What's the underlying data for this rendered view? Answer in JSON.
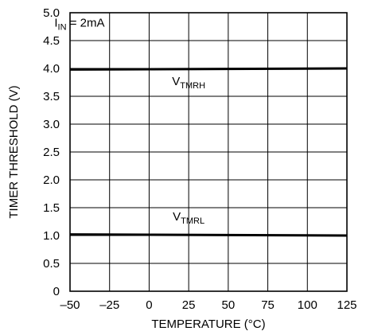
{
  "chart_data": {
    "type": "line",
    "xlabel": "TEMPERATURE (°C)",
    "ylabel": "TIMER THRESHOLD (V)",
    "xlim": [
      -50,
      125
    ],
    "ylim": [
      0,
      5.0
    ],
    "x_ticks": [
      -50,
      -25,
      0,
      25,
      50,
      75,
      100,
      125
    ],
    "x_tick_labels": [
      "–50",
      "–25",
      "0",
      "25",
      "50",
      "75",
      "100",
      "125"
    ],
    "y_ticks": [
      0,
      0.5,
      1.0,
      1.5,
      2.0,
      2.5,
      3.0,
      3.5,
      4.0,
      4.5,
      5.0
    ],
    "y_tick_labels": [
      "0",
      "0.5",
      "1.0",
      "1.5",
      "2.0",
      "2.5",
      "3.0",
      "3.5",
      "4.0",
      "4.5",
      "5.0"
    ],
    "grid": true,
    "series": [
      {
        "name": "VTMRH",
        "x": [
          -50,
          125
        ],
        "y": [
          3.98,
          4.0
        ]
      },
      {
        "name": "VTMRL",
        "x": [
          -50,
          125
        ],
        "y": [
          1.02,
          1.0
        ]
      }
    ],
    "annotations": [
      {
        "main": "V",
        "sub": "TMRH",
        "x": 25,
        "y": 3.7
      },
      {
        "main": "V",
        "sub": "TMRL",
        "x": 25,
        "y": 1.27
      },
      {
        "main": "I",
        "sub": "IN",
        "suffix": " = 2mA",
        "x": -44,
        "y": 4.75
      }
    ],
    "colors": {
      "line": "#000000",
      "grid": "#000000"
    }
  }
}
